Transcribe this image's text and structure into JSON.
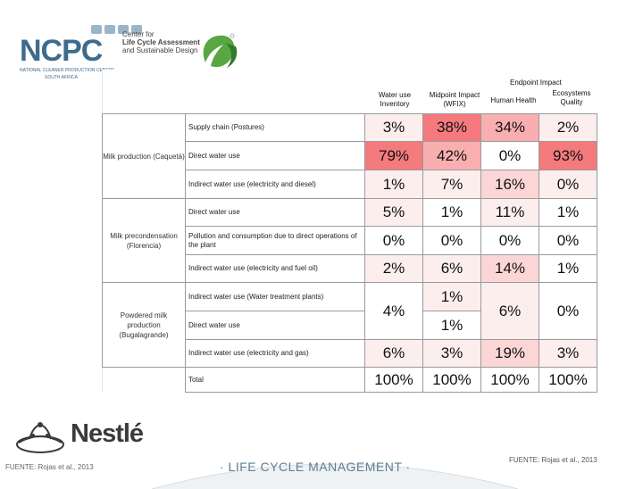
{
  "header": {
    "org_name": "NCPC",
    "org_sub": "NATIONAL CLEANER PRODUCTION CENTRE",
    "org_country": "SOUTH AFRICA",
    "center_title_lines": [
      "Center for",
      "Life Cycle Assessment",
      "and Sustainable Design"
    ]
  },
  "table": {
    "endpoint_label": "Endpoint Impact",
    "columns": [
      "Water use Inventory",
      "Midpoint Impact (WFIX)",
      "Human Health",
      "Ecosystems Quality"
    ],
    "groups": [
      "Milk production (Caquetá)",
      "Milk precondensation (Florencia)",
      "Powdered milk production (Bugalagrande)"
    ],
    "rows": [
      {
        "label": "Supply chain (Postures)",
        "values": [
          "3%",
          "38%",
          "34%",
          "2%"
        ]
      },
      {
        "label": "Direct water use",
        "values": [
          "79%",
          "42%",
          "0%",
          "93%"
        ]
      },
      {
        "label": "Indirect water use (electricity and diesel)",
        "values": [
          "1%",
          "7%",
          "16%",
          "0%"
        ]
      },
      {
        "label": "Direct water use",
        "values": [
          "5%",
          "1%",
          "11%",
          "1%"
        ]
      },
      {
        "label": "Pollution and consumption due to direct operations of the plant",
        "values": [
          "0%",
          "0%",
          "0%",
          "0%"
        ]
      },
      {
        "label": "Indirect water use (electricity and fuel oil)",
        "values": [
          "2%",
          "6%",
          "14%",
          "1%"
        ]
      },
      {
        "label": "Indirect water use (Water treatment plants)",
        "values": [
          "",
          "1%",
          "",
          ""
        ]
      },
      {
        "label": "Direct water use",
        "values": [
          "",
          "1%",
          "",
          ""
        ]
      },
      {
        "label": "Indirect water use (electricity and gas)",
        "values": [
          "6%",
          "3%",
          "19%",
          "3%"
        ]
      },
      {
        "label": "Total",
        "values": [
          "100%",
          "100%",
          "100%",
          "100%"
        ]
      }
    ],
    "merged_values": {
      "water_use": "4%",
      "human_health": "6%",
      "ecosystems": "0%"
    }
  },
  "colors": {
    "strong": "#f47a7e",
    "medium": "#f9aeb0",
    "light": "#fcd6d7",
    "pale": "#fdeeee",
    "header_blue": "#3d6b8e",
    "leaf_green": "#5aa642"
  },
  "footer": {
    "brand": "Nestlé",
    "source_left": "FUENTE: Rojas et al., 2013",
    "source_right": "FUENTE: Rojas et al., 2013",
    "tagline": "· LIFE CYCLE MANAGEMENT ·"
  }
}
